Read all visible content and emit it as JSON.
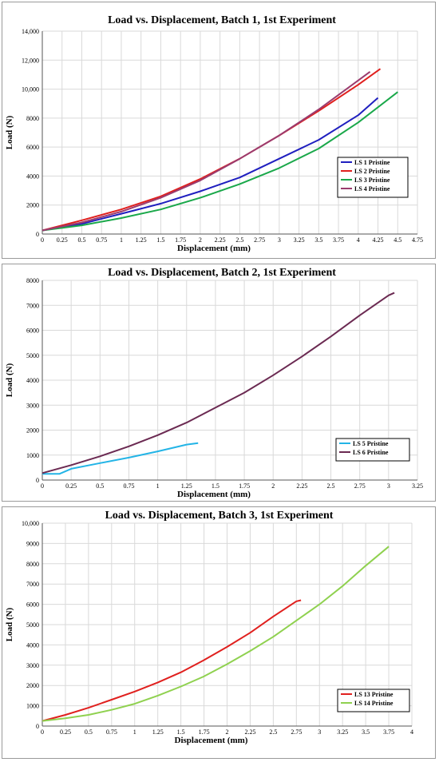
{
  "chart_data": [
    {
      "type": "line",
      "title": "Load vs. Displacement, Batch 1, 1st Experiment",
      "xlabel": "Displacement (mm)",
      "ylabel": "Load (N)",
      "xlim": [
        0,
        4.75
      ],
      "ylim": [
        0,
        14000
      ],
      "xticks": [
        "0",
        "0.25",
        "0.5",
        "0.75",
        "1",
        "1.25",
        "1.5",
        "1.75",
        "2",
        "2.25",
        "2.5",
        "2.75",
        "3",
        "3.25",
        "3.5",
        "3.75",
        "4",
        "4.25",
        "4.5",
        "4.75"
      ],
      "yticks": [
        "0",
        "2000",
        "4000",
        "6000",
        "8000",
        "10,000",
        "12,000",
        "14,000"
      ],
      "grid": true,
      "legend_position": "bottom-right",
      "series": [
        {
          "name": "LS 1 Pristine",
          "color": "#1f1fbf",
          "x": [
            0,
            0.5,
            1,
            1.5,
            2,
            2.5,
            3,
            3.5,
            4,
            4.25
          ],
          "y": [
            250,
            700,
            1400,
            2100,
            2950,
            3900,
            5200,
            6500,
            8200,
            9400
          ]
        },
        {
          "name": "LS 2 Pristine",
          "color": "#e0201e",
          "x": [
            0,
            0.5,
            1,
            1.5,
            2,
            2.5,
            3,
            3.5,
            4,
            4.28
          ],
          "y": [
            250,
            950,
            1700,
            2600,
            3800,
            5200,
            6800,
            8500,
            10300,
            11400
          ]
        },
        {
          "name": "LS 3 Pristine",
          "color": "#1aa84a",
          "x": [
            0,
            0.5,
            1,
            1.5,
            2,
            2.5,
            3,
            3.5,
            4,
            4.5
          ],
          "y": [
            250,
            600,
            1100,
            1700,
            2500,
            3450,
            4550,
            5900,
            7700,
            9800
          ]
        },
        {
          "name": "LS 4 Pristine",
          "color": "#9b3b6e",
          "x": [
            0,
            0.5,
            1,
            1.5,
            2,
            2.5,
            3,
            3.5,
            4,
            4.15
          ],
          "y": [
            250,
            800,
            1550,
            2500,
            3700,
            5200,
            6800,
            8600,
            10600,
            11200
          ]
        }
      ]
    },
    {
      "type": "line",
      "title": "Load vs. Displacement, Batch 2, 1st Experiment",
      "xlabel": "Displacement (mm)",
      "ylabel": "Load (N)",
      "xlim": [
        0,
        3.25
      ],
      "ylim": [
        0,
        8000
      ],
      "xticks": [
        "0",
        "0.25",
        "0.5",
        "0.75",
        "1",
        "1.25",
        "1.5",
        "1.75",
        "2",
        "2.25",
        "2.5",
        "2.75",
        "3",
        "3.25"
      ],
      "yticks": [
        "0",
        "1000",
        "2000",
        "3000",
        "4000",
        "5000",
        "6000",
        "7000",
        "8000"
      ],
      "grid": true,
      "legend_position": "bottom-right",
      "series": [
        {
          "name": "LS 5 Pristine",
          "color": "#23b4e6",
          "x": [
            0,
            0.15,
            0.25,
            0.5,
            0.75,
            1,
            1.25,
            1.35
          ],
          "y": [
            250,
            250,
            450,
            680,
            900,
            1150,
            1420,
            1480
          ]
        },
        {
          "name": "LS 6 Pristine",
          "color": "#6b2a52",
          "x": [
            0,
            0.25,
            0.5,
            0.75,
            1,
            1.25,
            1.5,
            1.75,
            2,
            2.25,
            2.5,
            2.75,
            3,
            3.05
          ],
          "y": [
            280,
            600,
            950,
            1350,
            1800,
            2300,
            2900,
            3500,
            4200,
            4950,
            5750,
            6600,
            7400,
            7500
          ]
        }
      ]
    },
    {
      "type": "line",
      "title": "Load vs. Displacement, Batch 3, 1st Experiment",
      "xlabel": "Displacement (mm)",
      "ylabel": "Load (N)",
      "xlim": [
        0,
        4
      ],
      "ylim": [
        0,
        10000
      ],
      "xticks": [
        "0",
        "0.25",
        "0.5",
        "0.75",
        "1",
        "1.25",
        "1.5",
        "1.75",
        "2",
        "2.25",
        "2.5",
        "2.75",
        "3",
        "3.25",
        "3.5",
        "3.75",
        "4"
      ],
      "yticks": [
        "0",
        "1000",
        "2000",
        "3000",
        "4000",
        "5000",
        "6000",
        "7000",
        "8000",
        "9000",
        "10,000"
      ],
      "grid": true,
      "legend_position": "bottom-right",
      "series": [
        {
          "name": "LS 13 Pristine",
          "color": "#e0201e",
          "x": [
            0,
            0.25,
            0.5,
            0.75,
            1,
            1.25,
            1.5,
            1.75,
            2,
            2.25,
            2.5,
            2.75,
            2.8
          ],
          "y": [
            250,
            550,
            900,
            1300,
            1700,
            2150,
            2650,
            3250,
            3900,
            4600,
            5400,
            6150,
            6200
          ]
        },
        {
          "name": "LS 14 Pristine",
          "color": "#8fd14f",
          "x": [
            0,
            0.25,
            0.5,
            0.75,
            1,
            1.25,
            1.5,
            1.75,
            2,
            2.25,
            2.5,
            2.75,
            3,
            3.25,
            3.5,
            3.75
          ],
          "y": [
            250,
            380,
            550,
            800,
            1100,
            1500,
            1950,
            2450,
            3050,
            3700,
            4400,
            5200,
            6000,
            6900,
            7900,
            8850
          ]
        }
      ]
    }
  ]
}
